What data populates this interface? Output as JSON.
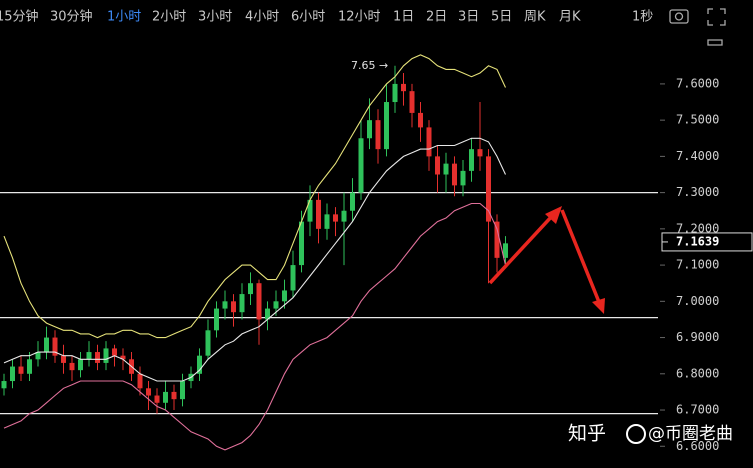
{
  "toolbar": {
    "intervals": [
      "15分钟",
      "30分钟",
      "1小时",
      "2小时",
      "3小时",
      "4小时",
      "6小时",
      "12小时",
      "1日",
      "2日",
      "3日",
      "5日",
      "周K",
      "月K"
    ],
    "active_index": 2,
    "tick_interval": "1秒"
  },
  "chart_data": {
    "type": "candlestick",
    "open": [
      6.76,
      6.78,
      6.82,
      6.8,
      6.84,
      6.86,
      6.9,
      6.85,
      6.83,
      6.81,
      6.84,
      6.86,
      6.83,
      6.87,
      6.85,
      6.84,
      6.8,
      6.76,
      6.74,
      6.72,
      6.75,
      6.73,
      6.78,
      6.8,
      6.85,
      6.92,
      6.98,
      7.0,
      6.97,
      7.02,
      7.05,
      6.95,
      6.98,
      7.0,
      7.03,
      7.1,
      7.22,
      7.28,
      7.2,
      7.24,
      7.22,
      7.25,
      7.3,
      7.45,
      7.5,
      7.42,
      7.55,
      7.6,
      7.58,
      7.52,
      7.48,
      7.4,
      7.35,
      7.38,
      7.32,
      7.36,
      7.42,
      7.4,
      7.22,
      7.12
    ],
    "high": [
      6.8,
      6.84,
      6.85,
      6.86,
      6.89,
      6.93,
      6.92,
      6.88,
      6.85,
      6.86,
      6.89,
      6.88,
      6.89,
      6.88,
      6.87,
      6.86,
      6.82,
      6.78,
      6.76,
      6.78,
      6.77,
      6.8,
      6.82,
      6.87,
      6.95,
      7.0,
      7.03,
      7.02,
      7.05,
      7.08,
      7.06,
      7.0,
      7.03,
      7.06,
      7.14,
      7.25,
      7.32,
      7.3,
      7.27,
      7.26,
      7.3,
      7.34,
      7.5,
      7.56,
      7.53,
      7.6,
      7.65,
      7.63,
      7.6,
      7.55,
      7.5,
      7.43,
      7.41,
      7.4,
      7.39,
      7.45,
      7.55,
      7.42,
      7.24,
      7.18
    ],
    "low": [
      6.74,
      6.76,
      6.78,
      6.78,
      6.82,
      6.84,
      6.83,
      6.8,
      6.78,
      6.79,
      6.82,
      6.81,
      6.81,
      6.82,
      6.81,
      6.78,
      6.74,
      6.7,
      6.69,
      6.7,
      6.7,
      6.71,
      6.76,
      6.78,
      6.84,
      6.9,
      6.95,
      6.93,
      6.95,
      6.99,
      6.88,
      6.92,
      6.96,
      6.98,
      7.01,
      7.08,
      7.18,
      7.16,
      7.17,
      7.18,
      7.1,
      7.22,
      7.28,
      7.42,
      7.38,
      7.4,
      7.52,
      7.54,
      7.48,
      7.44,
      7.36,
      7.3,
      7.3,
      7.29,
      7.29,
      7.33,
      7.36,
      7.05,
      7.08,
      7.1
    ],
    "close": [
      6.78,
      6.82,
      6.8,
      6.84,
      6.86,
      6.9,
      6.85,
      6.83,
      6.81,
      6.84,
      6.86,
      6.83,
      6.87,
      6.85,
      6.84,
      6.8,
      6.76,
      6.74,
      6.72,
      6.75,
      6.73,
      6.78,
      6.8,
      6.85,
      6.92,
      6.98,
      7.0,
      6.97,
      7.02,
      7.05,
      6.95,
      6.98,
      7.0,
      7.03,
      7.1,
      7.22,
      7.28,
      7.2,
      7.24,
      7.22,
      7.25,
      7.3,
      7.45,
      7.5,
      7.42,
      7.55,
      7.6,
      7.58,
      7.52,
      7.48,
      7.4,
      7.35,
      7.38,
      7.32,
      7.36,
      7.42,
      7.4,
      7.22,
      7.12,
      7.16
    ],
    "up_color": "#2fc25b",
    "down_color": "#e5302e",
    "overlays": [
      {
        "color": "#e6e27a",
        "values": [
          7.18,
          7.12,
          7.05,
          7.0,
          6.96,
          6.94,
          6.93,
          6.92,
          6.92,
          6.91,
          6.91,
          6.9,
          6.91,
          6.91,
          6.92,
          6.92,
          6.91,
          6.91,
          6.9,
          6.9,
          6.91,
          6.92,
          6.93,
          6.96,
          7.0,
          7.03,
          7.06,
          7.08,
          7.1,
          7.1,
          7.08,
          7.06,
          7.06,
          7.1,
          7.16,
          7.22,
          7.28,
          7.32,
          7.35,
          7.38,
          7.42,
          7.46,
          7.5,
          7.54,
          7.57,
          7.6,
          7.62,
          7.65,
          7.67,
          7.68,
          7.67,
          7.65,
          7.64,
          7.64,
          7.63,
          7.62,
          7.63,
          7.65,
          7.64,
          7.59
        ]
      },
      {
        "color": "#e8e8e8",
        "values": [
          6.83,
          6.84,
          6.85,
          6.85,
          6.86,
          6.86,
          6.86,
          6.85,
          6.85,
          6.84,
          6.84,
          6.84,
          6.84,
          6.85,
          6.84,
          6.82,
          6.8,
          6.79,
          6.78,
          6.78,
          6.78,
          6.78,
          6.79,
          6.81,
          6.84,
          6.86,
          6.88,
          6.89,
          6.91,
          6.92,
          6.93,
          6.95,
          6.97,
          6.99,
          7.01,
          7.04,
          7.07,
          7.1,
          7.13,
          7.16,
          7.19,
          7.22,
          7.26,
          7.3,
          7.33,
          7.36,
          7.38,
          7.4,
          7.41,
          7.42,
          7.42,
          7.43,
          7.43,
          7.43,
          7.44,
          7.45,
          7.45,
          7.44,
          7.4,
          7.35
        ]
      },
      {
        "color": "#e0709a",
        "values": [
          6.65,
          6.66,
          6.67,
          6.69,
          6.7,
          6.72,
          6.74,
          6.76,
          6.77,
          6.78,
          6.78,
          6.78,
          6.78,
          6.78,
          6.78,
          6.77,
          6.75,
          6.73,
          6.71,
          6.7,
          6.68,
          6.66,
          6.64,
          6.63,
          6.62,
          6.6,
          6.59,
          6.6,
          6.61,
          6.63,
          6.66,
          6.7,
          6.75,
          6.8,
          6.84,
          6.86,
          6.88,
          6.89,
          6.9,
          6.92,
          6.94,
          6.96,
          7.0,
          7.03,
          7.05,
          7.07,
          7.09,
          7.12,
          7.15,
          7.18,
          7.2,
          7.22,
          7.23,
          7.25,
          7.26,
          7.27,
          7.27,
          7.25,
          7.2,
          7.1
        ]
      }
    ],
    "hlines": [
      7.3,
      6.955,
      6.69
    ],
    "ylim": [
      6.54,
      7.735
    ],
    "yticks": [
      {
        "value": 6.6,
        "label": "6.6000"
      },
      {
        "value": 6.7,
        "label": "6.7000"
      },
      {
        "value": 6.8,
        "label": "6.8000"
      },
      {
        "value": 6.9,
        "label": "6.9000"
      },
      {
        "value": 7.0,
        "label": "7.0000"
      },
      {
        "value": 7.1,
        "label": "7.1000"
      },
      {
        "value": 7.2,
        "label": "7.2000"
      },
      {
        "value": 7.3,
        "label": "7.3000"
      },
      {
        "value": 7.4,
        "label": "7.4000"
      },
      {
        "value": 7.5,
        "label": "7.5000"
      },
      {
        "value": 7.6,
        "label": "7.6000"
      }
    ],
    "annotation": {
      "text": "7.65 →",
      "value": 7.65
    },
    "current_price": 7.1639
  },
  "watermark": {
    "site": "知乎",
    "author": "@币圈老曲"
  }
}
